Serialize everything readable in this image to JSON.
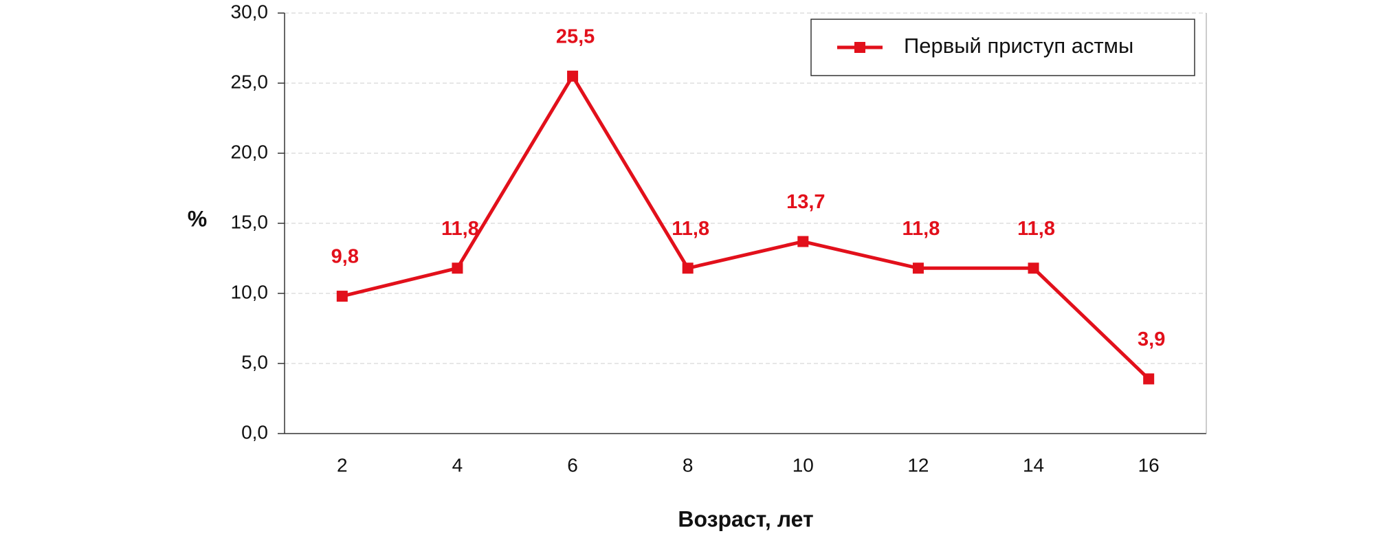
{
  "chart_data": {
    "type": "line",
    "x_label": "Возраст, лет",
    "y_label": "%",
    "categories": [
      "2",
      "4",
      "6",
      "8",
      "10",
      "12",
      "14",
      "16"
    ],
    "series": [
      {
        "name": "Первый приступ астмы",
        "color": "#e2101b",
        "values": [
          9.8,
          11.8,
          25.5,
          11.8,
          13.7,
          11.8,
          11.8,
          3.9
        ],
        "value_labels": [
          "9,8",
          "11,8",
          "25,5",
          "11,8",
          "13,7",
          "11,8",
          "11,8",
          "3,9"
        ]
      }
    ],
    "ylim": [
      0,
      30
    ],
    "yticks": [
      {
        "value": 0,
        "label": "0,0"
      },
      {
        "value": 5,
        "label": "5,0"
      },
      {
        "value": 10,
        "label": "10,0"
      },
      {
        "value": 15,
        "label": "15,0"
      },
      {
        "value": 20,
        "label": "20,0"
      },
      {
        "value": 25,
        "label": "25,0"
      },
      {
        "value": 30,
        "label": "30,0"
      }
    ],
    "grid": true,
    "legend": "upper-right"
  }
}
